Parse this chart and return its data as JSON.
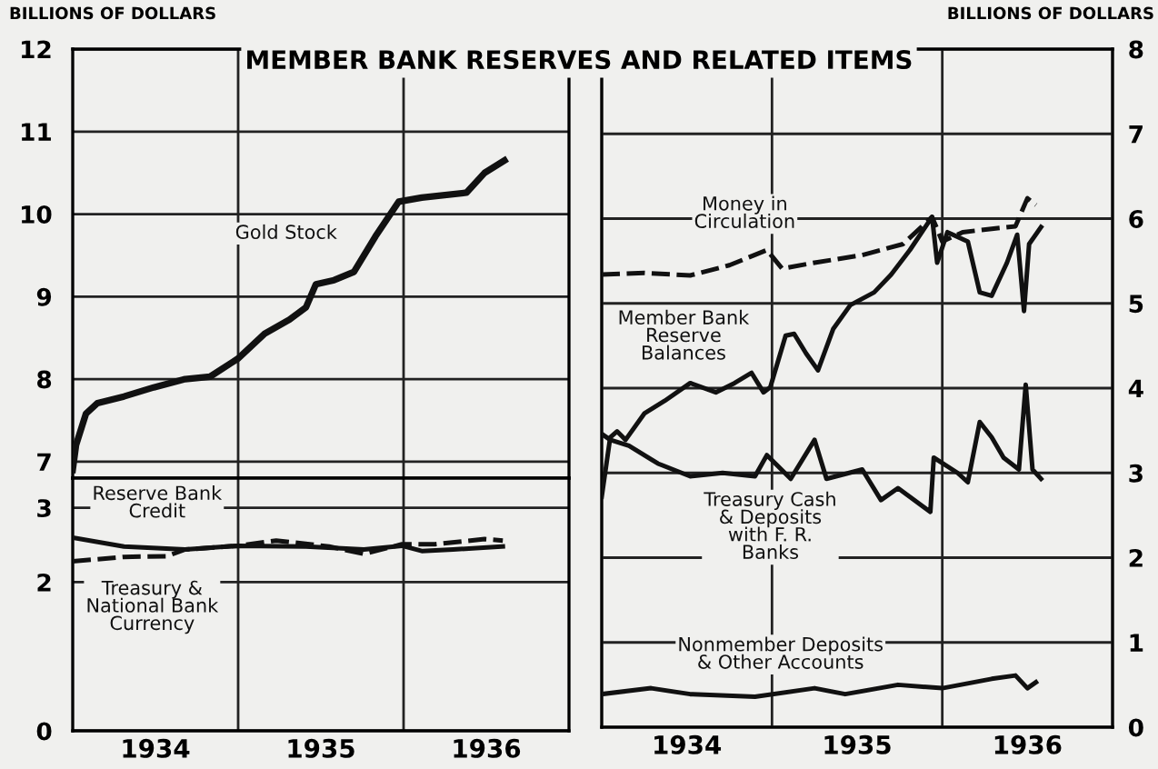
{
  "chart_data": [
    {
      "type": "line",
      "title": "MEMBER BANK RESERVES AND RELATED ITEMS",
      "ylabel": "BILLIONS OF DOLLARS",
      "xlim": [
        1934,
        1937
      ],
      "ylim": [
        6.8,
        12
      ],
      "yticks": [
        7,
        8,
        9,
        10,
        11,
        12
      ],
      "grid": "y",
      "tick_labels": "y",
      "ref_lines": [
        {
          "axis": "x",
          "value": 1935
        },
        {
          "axis": "x",
          "value": 1936
        }
      ],
      "series": [
        {
          "name": "Gold Stock",
          "color": "#111111",
          "line_style": "solid",
          "x": [
            1934.0,
            1934.02,
            1934.08,
            1934.15,
            1934.31,
            1934.49,
            1934.68,
            1934.83,
            1935.0,
            1935.16,
            1935.31,
            1935.41,
            1935.47,
            1935.58,
            1935.7,
            1935.83,
            1935.97,
            1936.11,
            1936.38,
            1936.49,
            1936.61
          ],
          "values": [
            6.9,
            7.2,
            7.58,
            7.71,
            7.79,
            7.9,
            8.0,
            8.03,
            8.25,
            8.55,
            8.72,
            8.87,
            9.15,
            9.2,
            9.3,
            9.73,
            10.15,
            10.2,
            10.26,
            10.5,
            10.65
          ]
        }
      ]
    },
    {
      "type": "line",
      "xlim": [
        1934,
        1937
      ],
      "ylim": [
        0,
        3.4
      ],
      "yticks": [
        0,
        2,
        3
      ],
      "grid": "y",
      "xticks": [
        {
          "value": 1934.5,
          "label": "1934"
        },
        {
          "value": 1935.5,
          "label": "1935"
        },
        {
          "value": 1936.5,
          "label": "1936"
        }
      ],
      "ref_lines": [
        {
          "axis": "x",
          "value": 1935
        },
        {
          "axis": "x",
          "value": 1936
        }
      ],
      "series": [
        {
          "name": "Reserve Bank Credit",
          "color": "#111111",
          "line_style": "solid",
          "x": [
            1934.0,
            1934.31,
            1934.68,
            1935.0,
            1935.41,
            1935.76,
            1935.99,
            1936.11,
            1936.3,
            1936.6
          ],
          "values": [
            2.6,
            2.48,
            2.44,
            2.49,
            2.48,
            2.44,
            2.49,
            2.42,
            2.44,
            2.48
          ]
        },
        {
          "name": "Treasury & National Bank Currency",
          "color": "#111111",
          "line_style": "dashed",
          "x": [
            1934.0,
            1934.31,
            1934.57,
            1934.68,
            1935.0,
            1935.23,
            1935.55,
            1935.76,
            1935.99,
            1936.19,
            1936.49,
            1936.6
          ],
          "values": [
            2.28,
            2.34,
            2.35,
            2.44,
            2.49,
            2.56,
            2.48,
            2.38,
            2.51,
            2.51,
            2.58,
            2.56
          ]
        }
      ]
    },
    {
      "type": "line",
      "y2label": "BILLIONS OF DOLLARS",
      "xlim": [
        1934,
        1937
      ],
      "y2lim": [
        0,
        8
      ],
      "y2ticks": [
        0,
        1,
        2,
        3,
        4,
        5,
        6,
        7,
        8
      ],
      "grid": "y",
      "xticks": [
        {
          "value": 1934.5,
          "label": "1934"
        },
        {
          "value": 1935.5,
          "label": "1935"
        },
        {
          "value": 1936.5,
          "label": "1936"
        }
      ],
      "ref_lines": [
        {
          "axis": "x",
          "value": 1935
        },
        {
          "axis": "x",
          "value": 1936
        }
      ],
      "series": [
        {
          "name": "Money in Circulation",
          "axis": "y2",
          "color": "#111111",
          "line_style": "dashed",
          "x": [
            1934.0,
            1934.25,
            1934.52,
            1934.75,
            1934.97,
            1935.06,
            1935.25,
            1935.53,
            1935.77,
            1935.94,
            1936.0,
            1936.12,
            1936.29,
            1936.43,
            1936.5,
            1936.55
          ],
          "values": [
            5.34,
            5.36,
            5.33,
            5.45,
            5.63,
            5.41,
            5.48,
            5.57,
            5.7,
            6.02,
            5.73,
            5.84,
            5.88,
            5.91,
            6.24,
            6.16
          ]
        },
        {
          "name": "Member Bank Reserve Balances",
          "axis": "y2",
          "color": "#111111",
          "line_style": "solid",
          "x": [
            1934.0,
            1934.05,
            1934.09,
            1934.14,
            1934.25,
            1934.37,
            1934.52,
            1934.67,
            1934.78,
            1934.88,
            1934.95,
            1934.99,
            1935.08,
            1935.13,
            1935.2,
            1935.27,
            1935.36,
            1935.46,
            1935.6,
            1935.7,
            1935.81,
            1935.94,
            1935.97,
            1936.03,
            1936.15,
            1936.22,
            1936.29,
            1936.38,
            1936.44,
            1936.48,
            1936.51,
            1936.58
          ],
          "values": [
            2.72,
            3.42,
            3.49,
            3.39,
            3.7,
            3.85,
            4.06,
            3.95,
            4.06,
            4.18,
            3.95,
            4.01,
            4.62,
            4.64,
            4.41,
            4.21,
            4.7,
            4.98,
            5.13,
            5.34,
            5.63,
            6.02,
            5.48,
            5.84,
            5.73,
            5.13,
            5.09,
            5.48,
            5.81,
            4.91,
            5.7,
            5.9
          ]
        },
        {
          "name": "Treasury Cash & Deposits with F. R. Banks",
          "axis": "y2",
          "color": "#111111",
          "line_style": "solid",
          "x": [
            1934.0,
            1934.05,
            1934.16,
            1934.33,
            1934.52,
            1934.71,
            1934.9,
            1934.97,
            1935.11,
            1935.25,
            1935.32,
            1935.53,
            1935.64,
            1935.74,
            1935.93,
            1935.95,
            1936.09,
            1936.15,
            1936.22,
            1936.29,
            1936.36,
            1936.45,
            1936.49,
            1936.53,
            1936.58
          ],
          "values": [
            3.46,
            3.39,
            3.32,
            3.11,
            2.96,
            3.0,
            2.96,
            3.21,
            2.93,
            3.39,
            2.93,
            3.04,
            2.68,
            2.82,
            2.54,
            3.18,
            3.0,
            2.89,
            3.6,
            3.42,
            3.18,
            3.04,
            4.04,
            3.04,
            2.93
          ]
        },
        {
          "name": "Nonmember Deposits & Other Accounts",
          "axis": "y2",
          "color": "#111111",
          "line_style": "solid",
          "x": [
            1934.0,
            1934.29,
            1934.52,
            1934.9,
            1935.25,
            1935.43,
            1935.74,
            1936.0,
            1936.29,
            1936.43,
            1936.5,
            1936.55
          ],
          "values": [
            0.39,
            0.46,
            0.39,
            0.36,
            0.46,
            0.39,
            0.5,
            0.46,
            0.57,
            0.61,
            0.46,
            0.53
          ]
        }
      ]
    }
  ]
}
